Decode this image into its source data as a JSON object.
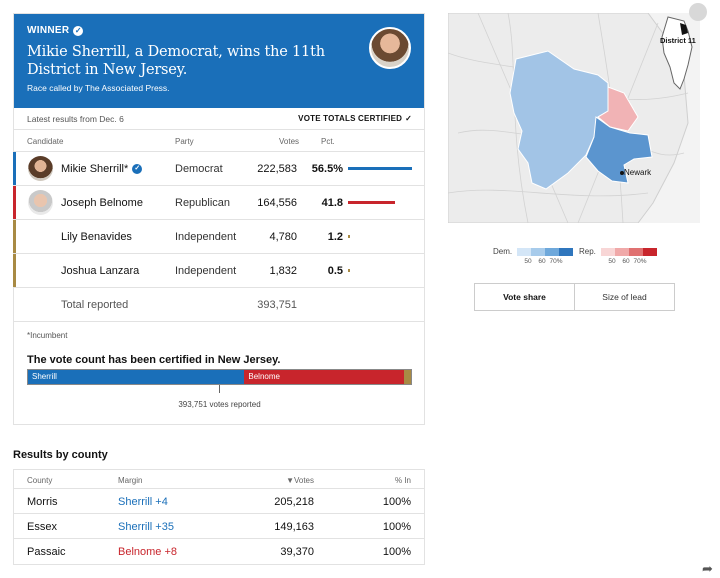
{
  "banner": {
    "tag": "WINNER",
    "headline": "Mikie Sherrill, a Democrat, wins the 11th District in New Jersey.",
    "called_by": "Race called by The Associated Press."
  },
  "status": {
    "latest": "Latest results from Dec. 6",
    "certified": "VOTE TOTALS CERTIFIED"
  },
  "columns": {
    "candidate": "Candidate",
    "party": "Party",
    "votes": "Votes",
    "pct": "Pct."
  },
  "candidates": [
    {
      "name": "Mikie Sherrill*",
      "party": "Democrat",
      "votes": "222,583",
      "pct": "56.5%",
      "share": 0.565,
      "color": "#1a6fb9"
    },
    {
      "name": "Joseph Belnome",
      "party": "Republican",
      "votes": "164,556",
      "pct": "41.8",
      "share": 0.418,
      "color": "#c8252c"
    },
    {
      "name": "Lily Benavides",
      "party": "Independent",
      "votes": "4,780",
      "pct": "1.2",
      "share": 0.012,
      "color": "#a88a44"
    },
    {
      "name": "Joshua Lanzara",
      "party": "Independent",
      "votes": "1,832",
      "pct": "0.5",
      "share": 0.005,
      "color": "#a88a44"
    }
  ],
  "total": {
    "label": "Total reported",
    "votes": "393,751"
  },
  "footnote": "*Incumbent",
  "certification": {
    "title": "The vote count has been certified in New Jersey.",
    "dem_label": "Sherrill",
    "rep_label": "Belnome",
    "caption": "393,751 votes reported"
  },
  "county_section": {
    "title": "Results by county",
    "headers": {
      "county": "County",
      "margin": "Margin",
      "votes": "▼Votes",
      "pct_in": "% In"
    },
    "rows": [
      {
        "county": "Morris",
        "margin": "Sherrill +4",
        "votes": "205,218",
        "pct_in": "100%",
        "color": "#1a6fb9"
      },
      {
        "county": "Essex",
        "margin": "Sherrill +35",
        "votes": "149,163",
        "pct_in": "100%",
        "color": "#1a6fb9"
      },
      {
        "county": "Passaic",
        "margin": "Belnome +8",
        "votes": "39,370",
        "pct_in": "100%",
        "color": "#c8252c"
      }
    ]
  },
  "map": {
    "district_label": "District 11",
    "city_label": "Newark"
  },
  "legend": {
    "dem_label": "Dem.",
    "rep_label": "Rep.",
    "dem_ticks": [
      "50",
      "60",
      "70%"
    ],
    "rep_ticks": [
      "50",
      "60",
      "70%"
    ],
    "dem_colors": [
      "#d4e6f7",
      "#a7cbeb",
      "#6ea8db",
      "#2f76bd"
    ],
    "rep_colors": [
      "#f8d6d6",
      "#f0a9a9",
      "#e07171",
      "#c8252c"
    ]
  },
  "toggle": {
    "vote_share": "Vote share",
    "size_of_lead": "Size of lead"
  },
  "icons": {
    "check": "check-icon",
    "bell": "bell-icon",
    "share": "share-icon"
  }
}
